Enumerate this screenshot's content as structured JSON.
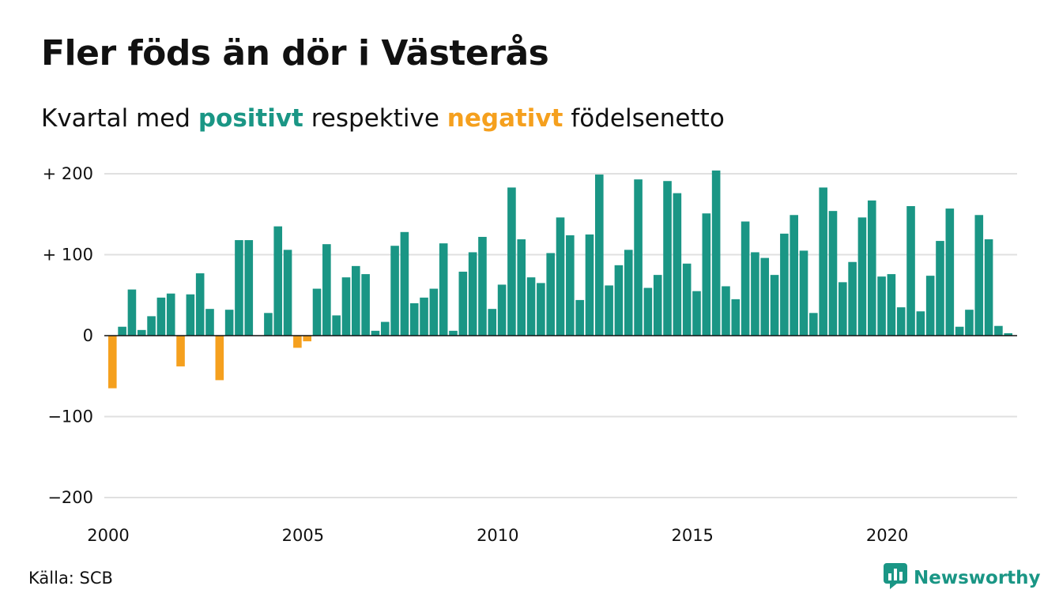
{
  "title": "Fler föds än dör i Västerås",
  "subtitle": {
    "part1": "Kvartal med ",
    "positive": "positivt",
    "part2": " respektive ",
    "negative": "negativt",
    "part3": " födelsenetto"
  },
  "colors": {
    "positive": "#1a9685",
    "negative": "#f5a01e",
    "grid": "#e0e0e0"
  },
  "source": "Källa: SCB",
  "logo": {
    "icon": "bar-chart-speech-icon",
    "text": "Newsworthy"
  },
  "chart_data": {
    "type": "bar",
    "title": "Fler föds än dör i Västerås",
    "subtitle": "Kvartal med positivt respektive negativt födelsenetto",
    "start_year": 2000,
    "x_ticks": [
      2000,
      2005,
      2010,
      2015,
      2020
    ],
    "y_ticks": [
      200,
      100,
      0,
      -100,
      -200
    ],
    "y_tick_labels": [
      "+ 200",
      "+ 100",
      "0",
      "−100",
      "−200"
    ],
    "ylim": [
      -200,
      200
    ],
    "grid": true,
    "values": [
      -65,
      11,
      57,
      7,
      24,
      47,
      52,
      -38,
      51,
      77,
      33,
      -55,
      32,
      118,
      118,
      0,
      28,
      135,
      106,
      -15,
      -7,
      58,
      113,
      25,
      72,
      86,
      76,
      6,
      17,
      111,
      128,
      40,
      47,
      58,
      114,
      6,
      79,
      103,
      122,
      33,
      63,
      183,
      119,
      72,
      65,
      102,
      146,
      124,
      44,
      125,
      199,
      62,
      87,
      106,
      193,
      59,
      75,
      191,
      176,
      89,
      55,
      151,
      204,
      61,
      45,
      141,
      103,
      96,
      75,
      126,
      149,
      105,
      28,
      183,
      154,
      66,
      91,
      146,
      167,
      73,
      76,
      35,
      160,
      30,
      74,
      117,
      157,
      11,
      32,
      149,
      119,
      12,
      3
    ]
  }
}
